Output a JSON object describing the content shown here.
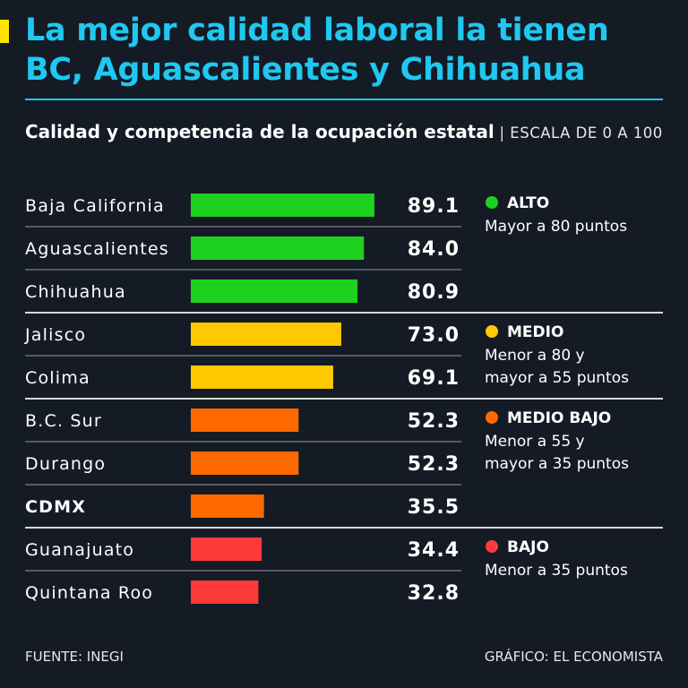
{
  "header": {
    "title_line1": "La mejor calidad laboral la tienen",
    "title_line2": "BC, Aguascalientes y Chihuahua",
    "subtitle_bold": "Calidad y competencia de la ocupación estatal",
    "subtitle_sep": " | ",
    "subtitle_rest": "ESCALA DE 0 A 100"
  },
  "colors": {
    "background": "#141b25",
    "title": "#1fc8f0",
    "alto": "#1fd11f",
    "medio": "#ffc800",
    "medio_bajo": "#ff6a00",
    "bajo": "#ff3a3a",
    "divider": "#d0d0d0"
  },
  "chart_data": {
    "type": "bar",
    "orientation": "horizontal",
    "title": "Calidad y competencia de la ocupación estatal",
    "scale": "ESCALA DE 0 A 100",
    "xlim": [
      0,
      100
    ],
    "categories": [
      "Baja California",
      "Aguascalientes",
      "Chihuahua",
      "Jalisco",
      "Colima",
      "B.C. Sur",
      "Durango",
      "CDMX",
      "Guanajuato",
      "Quintana Roo"
    ],
    "values": [
      89.1,
      84.0,
      80.9,
      73.0,
      69.1,
      52.3,
      52.3,
      35.5,
      34.4,
      32.8
    ],
    "value_labels": [
      "89.1",
      "84.0",
      "80.9",
      "73.0",
      "69.1",
      "52.3",
      "52.3",
      "35.5",
      "34.4",
      "32.8"
    ],
    "highlighted": [
      "CDMX"
    ],
    "groups": [
      {
        "key": "alto",
        "name": "ALTO",
        "desc_lines": [
          "Mayor a 80 puntos"
        ],
        "start": 0,
        "count": 3
      },
      {
        "key": "medio",
        "name": "MEDIO",
        "desc_lines": [
          "Menor a 80 y",
          "mayor a 55 puntos"
        ],
        "start": 3,
        "count": 2
      },
      {
        "key": "medio_bajo",
        "name": "MEDIO BAJO",
        "desc_lines": [
          "Menor a 55 y",
          "mayor a 35 puntos"
        ],
        "start": 5,
        "count": 3
      },
      {
        "key": "bajo",
        "name": "BAJO",
        "desc_lines": [
          "Menor a 35 puntos"
        ],
        "start": 8,
        "count": 2
      }
    ]
  },
  "footer": {
    "source": "FUENTE: INEGI",
    "credit": "GRÁFICO: EL ECONOMISTA"
  }
}
